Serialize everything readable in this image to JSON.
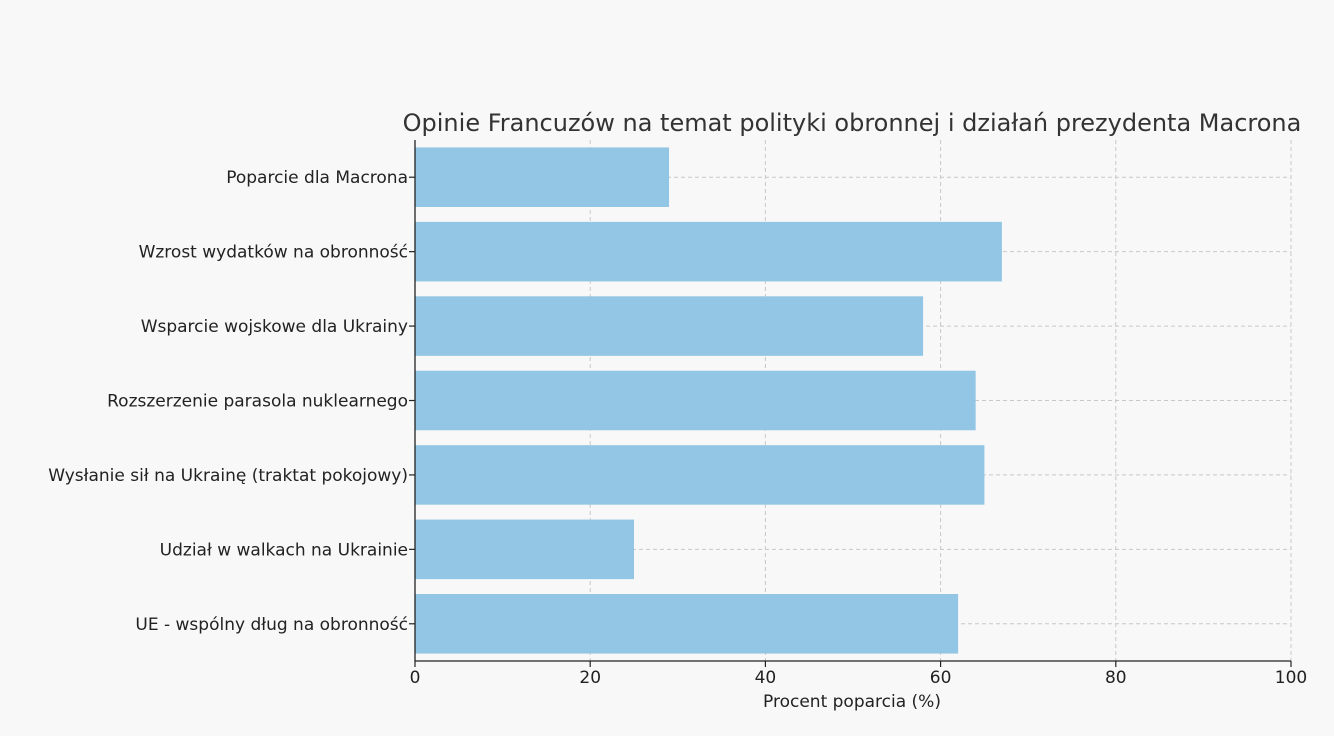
{
  "chart_data": {
    "type": "bar",
    "orientation": "horizontal",
    "title": "Opinie Francuzów na temat polityki obronnej i działań prezydenta Macrona",
    "xlabel": "Procent poparcia (%)",
    "ylabel": "",
    "xlim": [
      0,
      100
    ],
    "xticks": [
      0,
      20,
      40,
      60,
      80,
      100
    ],
    "grid": true,
    "bar_color": "#93c6e4",
    "categories": [
      "Poparcie dla Macrona",
      "Wzrost wydatków na obronność",
      "Wsparcie wojskowe dla Ukrainy",
      "Rozszerzenie parasola nuklearnego",
      "Wysłanie sił na Ukrainę (traktat pokojowy)",
      "Udział w walkach na Ukrainie",
      "UE - wspólny dług na obronność"
    ],
    "values": [
      29,
      67,
      58,
      64,
      65,
      25,
      62
    ]
  }
}
